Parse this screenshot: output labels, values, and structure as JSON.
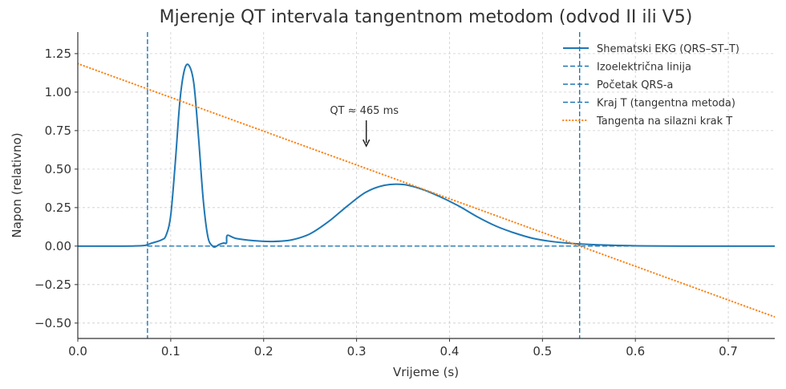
{
  "chart_data": {
    "type": "line",
    "title": "Mjerenje QT intervala tangentnom metodom (odvod II ili V5)",
    "xlabel": "Vrijeme (s)",
    "ylabel": "Napon (relativno)",
    "xlim": [
      0.0,
      0.75
    ],
    "ylim": [
      -0.6,
      1.39
    ],
    "grid": true,
    "legend_position": "top-right",
    "x_ticks": [
      0.0,
      0.1,
      0.2,
      0.3,
      0.4,
      0.5,
      0.6,
      0.7
    ],
    "x_tick_labels": [
      "0.0",
      "0.1",
      "0.2",
      "0.3",
      "0.4",
      "0.5",
      "0.6",
      "0.7"
    ],
    "y_ticks": [
      -0.5,
      -0.25,
      0.0,
      0.25,
      0.5,
      0.75,
      1.0,
      1.25
    ],
    "y_tick_labels": [
      "−0.50",
      "−0.25",
      "0.00",
      "0.25",
      "0.50",
      "0.75",
      "1.00",
      "1.25"
    ],
    "series": [
      {
        "name": "Shematski EKG (QRS–ST–T)",
        "style": "solid",
        "color": "#1f77b4",
        "x": [
          0.0,
          0.05,
          0.07,
          0.075,
          0.08,
          0.09,
          0.095,
          0.1,
          0.105,
          0.11,
          0.115,
          0.12,
          0.125,
          0.13,
          0.135,
          0.14,
          0.145,
          0.148,
          0.152,
          0.157,
          0.16,
          0.161,
          0.17,
          0.19,
          0.21,
          0.23,
          0.25,
          0.27,
          0.29,
          0.31,
          0.33,
          0.35,
          0.37,
          0.39,
          0.41,
          0.43,
          0.45,
          0.47,
          0.49,
          0.51,
          0.53,
          0.54,
          0.56,
          0.6,
          0.65,
          0.75
        ],
        "y": [
          0.0,
          0.0,
          0.003,
          0.01,
          0.02,
          0.04,
          0.07,
          0.2,
          0.55,
          0.95,
          1.15,
          1.17,
          1.05,
          0.7,
          0.3,
          0.06,
          0.0,
          -0.005,
          0.01,
          0.02,
          0.02,
          0.07,
          0.05,
          0.035,
          0.03,
          0.04,
          0.08,
          0.16,
          0.26,
          0.35,
          0.395,
          0.4,
          0.37,
          0.32,
          0.26,
          0.19,
          0.13,
          0.085,
          0.05,
          0.03,
          0.018,
          0.014,
          0.008,
          0.002,
          0.0,
          0.0
        ]
      },
      {
        "name": "Izoelektrična linija",
        "style": "dashed",
        "color": "#1f77b4",
        "orientation": "horizontal",
        "value": 0.0,
        "x_range": [
          0.075,
          0.75
        ]
      },
      {
        "name": "Početak QRS-a",
        "style": "dashed",
        "color": "#1f77b4",
        "orientation": "vertical",
        "value": 0.075
      },
      {
        "name": "Kraj T (tangentna metoda)",
        "style": "dashed",
        "color": "#1f77b4",
        "orientation": "vertical",
        "value": 0.54
      },
      {
        "name": "Tangenta na silazni krak T",
        "style": "dotted",
        "color": "#ff7f0e",
        "x": [
          0.0,
          0.75
        ],
        "y": [
          1.185,
          -0.46
        ]
      }
    ],
    "annotations": [
      {
        "text": "QT ≈ 465 ms",
        "arrow": "down",
        "x": 0.31,
        "y": 0.65,
        "arrow_tip_y": 0.65,
        "text_y": 0.9
      }
    ]
  }
}
